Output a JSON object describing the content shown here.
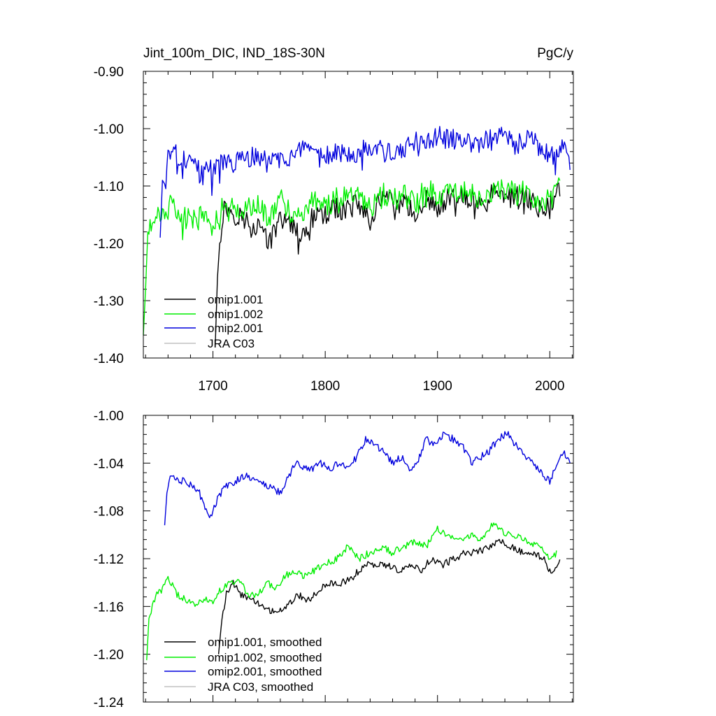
{
  "colors": {
    "omip1_001": "#000000",
    "omip1_002": "#00ee00",
    "omip2_001": "#0000dd",
    "jra_c03": "#c0c0c0"
  },
  "chart_data": [
    {
      "type": "line",
      "title": "Jint_100m_DIC, IND_18S-30N",
      "units_label": "PgC/y",
      "xlim": [
        1638,
        2021
      ],
      "ylim": [
        -1.4,
        -0.9
      ],
      "x_ticks": [
        1700,
        1800,
        1900,
        2000
      ],
      "x_tick_labels": [
        "1700",
        "1800",
        "1900",
        "2000"
      ],
      "y_ticks": [
        -1.4,
        -1.3,
        -1.2,
        -1.1,
        -1.0,
        -0.9
      ],
      "y_tick_labels": [
        "-1.40",
        "-1.30",
        "-1.20",
        "-1.10",
        "-1.00",
        "-0.90"
      ],
      "legend": {
        "placement": "bottom-left",
        "entries": [
          "omip1.001",
          "omip1.002",
          "omip2.001",
          "JRA C03"
        ]
      },
      "series": [
        {
          "name": "omip1.001",
          "color_key": "omip1_001",
          "x": [
            1702,
            1704,
            1706,
            1708,
            1710,
            1714,
            1720,
            1730,
            1740,
            1750,
            1760,
            1770,
            1780,
            1790,
            1800,
            1810,
            1820,
            1830,
            1840,
            1850,
            1860,
            1870,
            1880,
            1890,
            1900,
            1910,
            1920,
            1930,
            1940,
            1950,
            1960,
            1970,
            1980,
            1990,
            2000,
            2009
          ],
          "values": [
            -1.38,
            -1.26,
            -1.2,
            -1.16,
            -1.14,
            -1.14,
            -1.15,
            -1.16,
            -1.17,
            -1.2,
            -1.16,
            -1.16,
            -1.19,
            -1.15,
            -1.15,
            -1.14,
            -1.14,
            -1.13,
            -1.16,
            -1.12,
            -1.13,
            -1.13,
            -1.15,
            -1.12,
            -1.14,
            -1.12,
            -1.12,
            -1.12,
            -1.14,
            -1.11,
            -1.12,
            -1.12,
            -1.12,
            -1.14,
            -1.13,
            -1.1
          ]
        },
        {
          "name": "omip1.002",
          "color_key": "omip1_002",
          "x": [
            1638,
            1640,
            1642,
            1646,
            1650,
            1655,
            1660,
            1670,
            1680,
            1690,
            1700,
            1710,
            1720,
            1730,
            1740,
            1750,
            1760,
            1770,
            1780,
            1790,
            1800,
            1810,
            1820,
            1830,
            1840,
            1850,
            1860,
            1870,
            1880,
            1890,
            1900,
            1910,
            1920,
            1930,
            1940,
            1950,
            1960,
            1970,
            1980,
            1990,
            2000,
            2009
          ],
          "values": [
            -1.36,
            -1.28,
            -1.18,
            -1.17,
            -1.14,
            -1.15,
            -1.13,
            -1.15,
            -1.16,
            -1.15,
            -1.17,
            -1.13,
            -1.14,
            -1.14,
            -1.13,
            -1.16,
            -1.12,
            -1.15,
            -1.15,
            -1.12,
            -1.14,
            -1.12,
            -1.12,
            -1.11,
            -1.14,
            -1.11,
            -1.12,
            -1.11,
            -1.13,
            -1.1,
            -1.12,
            -1.11,
            -1.11,
            -1.11,
            -1.13,
            -1.1,
            -1.11,
            -1.11,
            -1.11,
            -1.13,
            -1.12,
            -1.09
          ]
        },
        {
          "name": "omip2.001",
          "color_key": "omip2_001",
          "x": [
            1653,
            1655,
            1658,
            1660,
            1670,
            1680,
            1690,
            1700,
            1710,
            1720,
            1730,
            1740,
            1750,
            1760,
            1770,
            1780,
            1790,
            1800,
            1810,
            1820,
            1830,
            1840,
            1850,
            1860,
            1870,
            1880,
            1890,
            1900,
            1910,
            1920,
            1930,
            1940,
            1950,
            1960,
            1970,
            1980,
            1990,
            2000,
            2010,
            2018
          ],
          "values": [
            -1.19,
            -1.09,
            -1.1,
            -1.04,
            -1.05,
            -1.06,
            -1.08,
            -1.07,
            -1.06,
            -1.06,
            -1.05,
            -1.05,
            -1.06,
            -1.05,
            -1.05,
            -1.04,
            -1.05,
            -1.05,
            -1.04,
            -1.04,
            -1.04,
            -1.03,
            -1.04,
            -1.04,
            -1.04,
            -1.02,
            -1.03,
            -1.01,
            -1.02,
            -1.02,
            -1.03,
            -1.02,
            -1.02,
            -1.01,
            -1.03,
            -1.02,
            -1.03,
            -1.05,
            -1.03,
            -1.06
          ]
        },
        {
          "name": "JRA C03",
          "color_key": "jra_c03",
          "x": [],
          "values": []
        }
      ]
    },
    {
      "type": "line",
      "title": "",
      "xlim": [
        1638,
        2021
      ],
      "ylim": [
        -1.24,
        -1.0
      ],
      "y_ticks": [
        -1.24,
        -1.2,
        -1.16,
        -1.12,
        -1.08,
        -1.04,
        -1.0
      ],
      "y_tick_labels": [
        "-1.24",
        "-1.20",
        "-1.16",
        "-1.12",
        "-1.08",
        "-1.04",
        "-1.00"
      ],
      "legend": {
        "placement": "bottom-left",
        "entries": [
          "omip1.001, smoothed",
          "omip1.002, smoothed",
          "omip2.001, smoothed",
          "JRA C03, smoothed"
        ]
      },
      "series": [
        {
          "name": "omip1.001, smoothed",
          "color_key": "omip1_001",
          "x": [
            1705,
            1708,
            1712,
            1718,
            1725,
            1735,
            1745,
            1755,
            1765,
            1775,
            1785,
            1795,
            1805,
            1815,
            1825,
            1835,
            1845,
            1855,
            1865,
            1875,
            1885,
            1895,
            1905,
            1915,
            1925,
            1935,
            1945,
            1955,
            1965,
            1975,
            1985,
            1995,
            2000,
            2005,
            2009
          ],
          "values": [
            -1.2,
            -1.17,
            -1.15,
            -1.14,
            -1.15,
            -1.155,
            -1.16,
            -1.165,
            -1.16,
            -1.15,
            -1.155,
            -1.145,
            -1.14,
            -1.14,
            -1.135,
            -1.125,
            -1.125,
            -1.125,
            -1.13,
            -1.125,
            -1.13,
            -1.12,
            -1.125,
            -1.12,
            -1.115,
            -1.115,
            -1.11,
            -1.105,
            -1.11,
            -1.115,
            -1.115,
            -1.12,
            -1.13,
            -1.13,
            -1.123
          ]
        },
        {
          "name": "omip1.002, smoothed",
          "color_key": "omip1_002",
          "x": [
            1641,
            1643,
            1646,
            1650,
            1655,
            1660,
            1668,
            1676,
            1684,
            1692,
            1700,
            1708,
            1716,
            1724,
            1732,
            1740,
            1748,
            1756,
            1764,
            1772,
            1780,
            1790,
            1800,
            1810,
            1820,
            1830,
            1840,
            1850,
            1860,
            1870,
            1880,
            1890,
            1900,
            1910,
            1920,
            1930,
            1940,
            1950,
            1960,
            1970,
            1980,
            1990,
            2000,
            2006
          ],
          "values": [
            -1.205,
            -1.17,
            -1.16,
            -1.15,
            -1.145,
            -1.135,
            -1.15,
            -1.155,
            -1.16,
            -1.155,
            -1.155,
            -1.145,
            -1.14,
            -1.14,
            -1.15,
            -1.15,
            -1.14,
            -1.145,
            -1.135,
            -1.13,
            -1.135,
            -1.13,
            -1.125,
            -1.12,
            -1.11,
            -1.12,
            -1.115,
            -1.11,
            -1.115,
            -1.11,
            -1.105,
            -1.11,
            -1.095,
            -1.1,
            -1.105,
            -1.1,
            -1.105,
            -1.09,
            -1.1,
            -1.1,
            -1.105,
            -1.11,
            -1.12,
            -1.115
          ]
        },
        {
          "name": "omip2.001, smoothed",
          "color_key": "omip2_001",
          "x": [
            1657,
            1659,
            1662,
            1668,
            1675,
            1682,
            1688,
            1694,
            1698,
            1704,
            1710,
            1720,
            1730,
            1740,
            1750,
            1760,
            1768,
            1774,
            1780,
            1788,
            1796,
            1804,
            1812,
            1820,
            1828,
            1836,
            1844,
            1852,
            1860,
            1868,
            1876,
            1884,
            1890,
            1898,
            1906,
            1914,
            1922,
            1930,
            1938,
            1946,
            1954,
            1962,
            1970,
            1978,
            1986,
            1994,
            2000,
            2006,
            2012,
            2018
          ],
          "values": [
            -1.092,
            -1.065,
            -1.05,
            -1.055,
            -1.055,
            -1.06,
            -1.065,
            -1.08,
            -1.085,
            -1.07,
            -1.06,
            -1.055,
            -1.05,
            -1.055,
            -1.06,
            -1.065,
            -1.05,
            -1.04,
            -1.045,
            -1.045,
            -1.04,
            -1.045,
            -1.04,
            -1.045,
            -1.035,
            -1.02,
            -1.025,
            -1.03,
            -1.04,
            -1.035,
            -1.045,
            -1.035,
            -1.02,
            -1.025,
            -1.015,
            -1.02,
            -1.025,
            -1.04,
            -1.035,
            -1.03,
            -1.02,
            -1.015,
            -1.025,
            -1.035,
            -1.04,
            -1.05,
            -1.055,
            -1.04,
            -1.03,
            -1.038
          ]
        },
        {
          "name": "JRA C03, smoothed",
          "color_key": "jra_c03",
          "x": [],
          "values": []
        }
      ]
    }
  ]
}
